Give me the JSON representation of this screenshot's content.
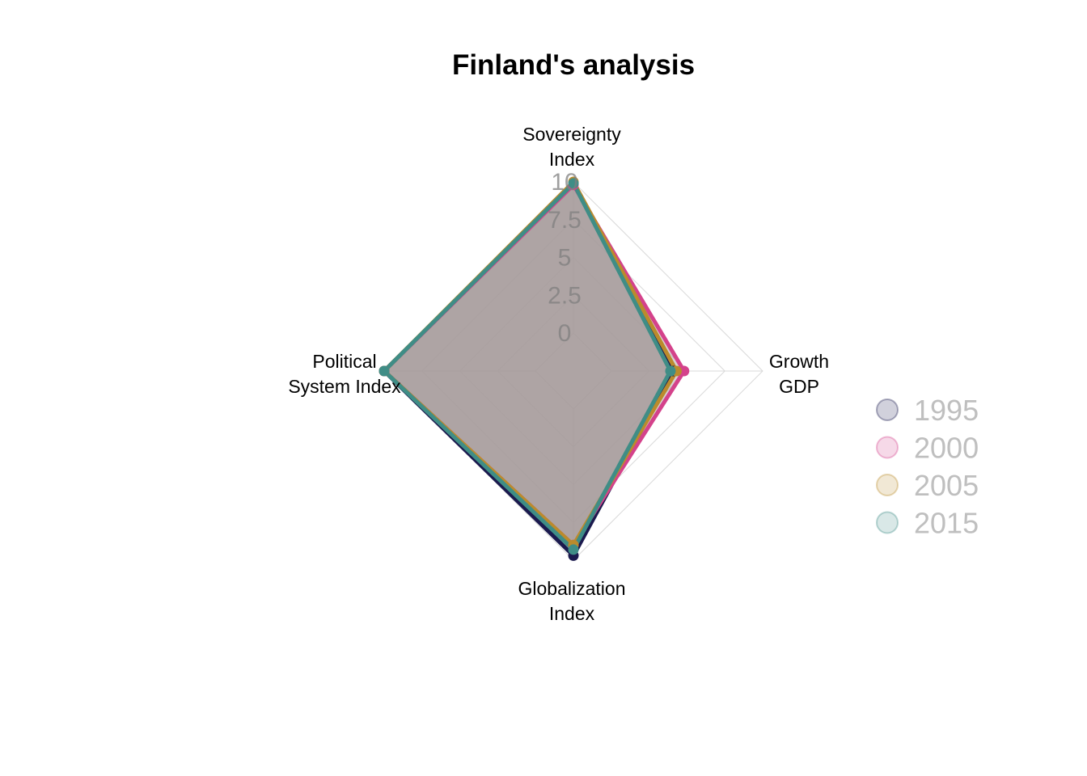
{
  "chart_data": {
    "type": "radar",
    "title": "Finland's analysis",
    "axes": [
      {
        "label_lines": [
          "Sovereignty",
          "Index"
        ]
      },
      {
        "label_lines": [
          "Growth",
          "GDP"
        ]
      },
      {
        "label_lines": [
          "Globalization",
          "Index"
        ]
      },
      {
        "label_lines": [
          "Political",
          "System Index"
        ]
      }
    ],
    "range": [
      0,
      10
    ],
    "ticks": [
      "0",
      "2.5",
      "5",
      "7.5",
      "10"
    ],
    "tick_values": [
      0,
      2.5,
      5,
      7.5,
      10
    ],
    "grid": true,
    "legend_position": "right",
    "series": [
      {
        "name": "1995",
        "color": "#1b1a4e",
        "values": [
          9.9,
          4.1,
          9.7,
          10
        ]
      },
      {
        "name": "2000",
        "color": "#d4428b",
        "values": [
          9.8,
          4.8,
          9.0,
          10
        ]
      },
      {
        "name": "2005",
        "color": "#bb8b2c",
        "values": [
          10,
          4.3,
          9.0,
          10
        ]
      },
      {
        "name": "2015",
        "color": "#3f8d86",
        "values": [
          9.9,
          3.9,
          9.3,
          10
        ]
      }
    ],
    "fill_color": "#a79b9b"
  }
}
